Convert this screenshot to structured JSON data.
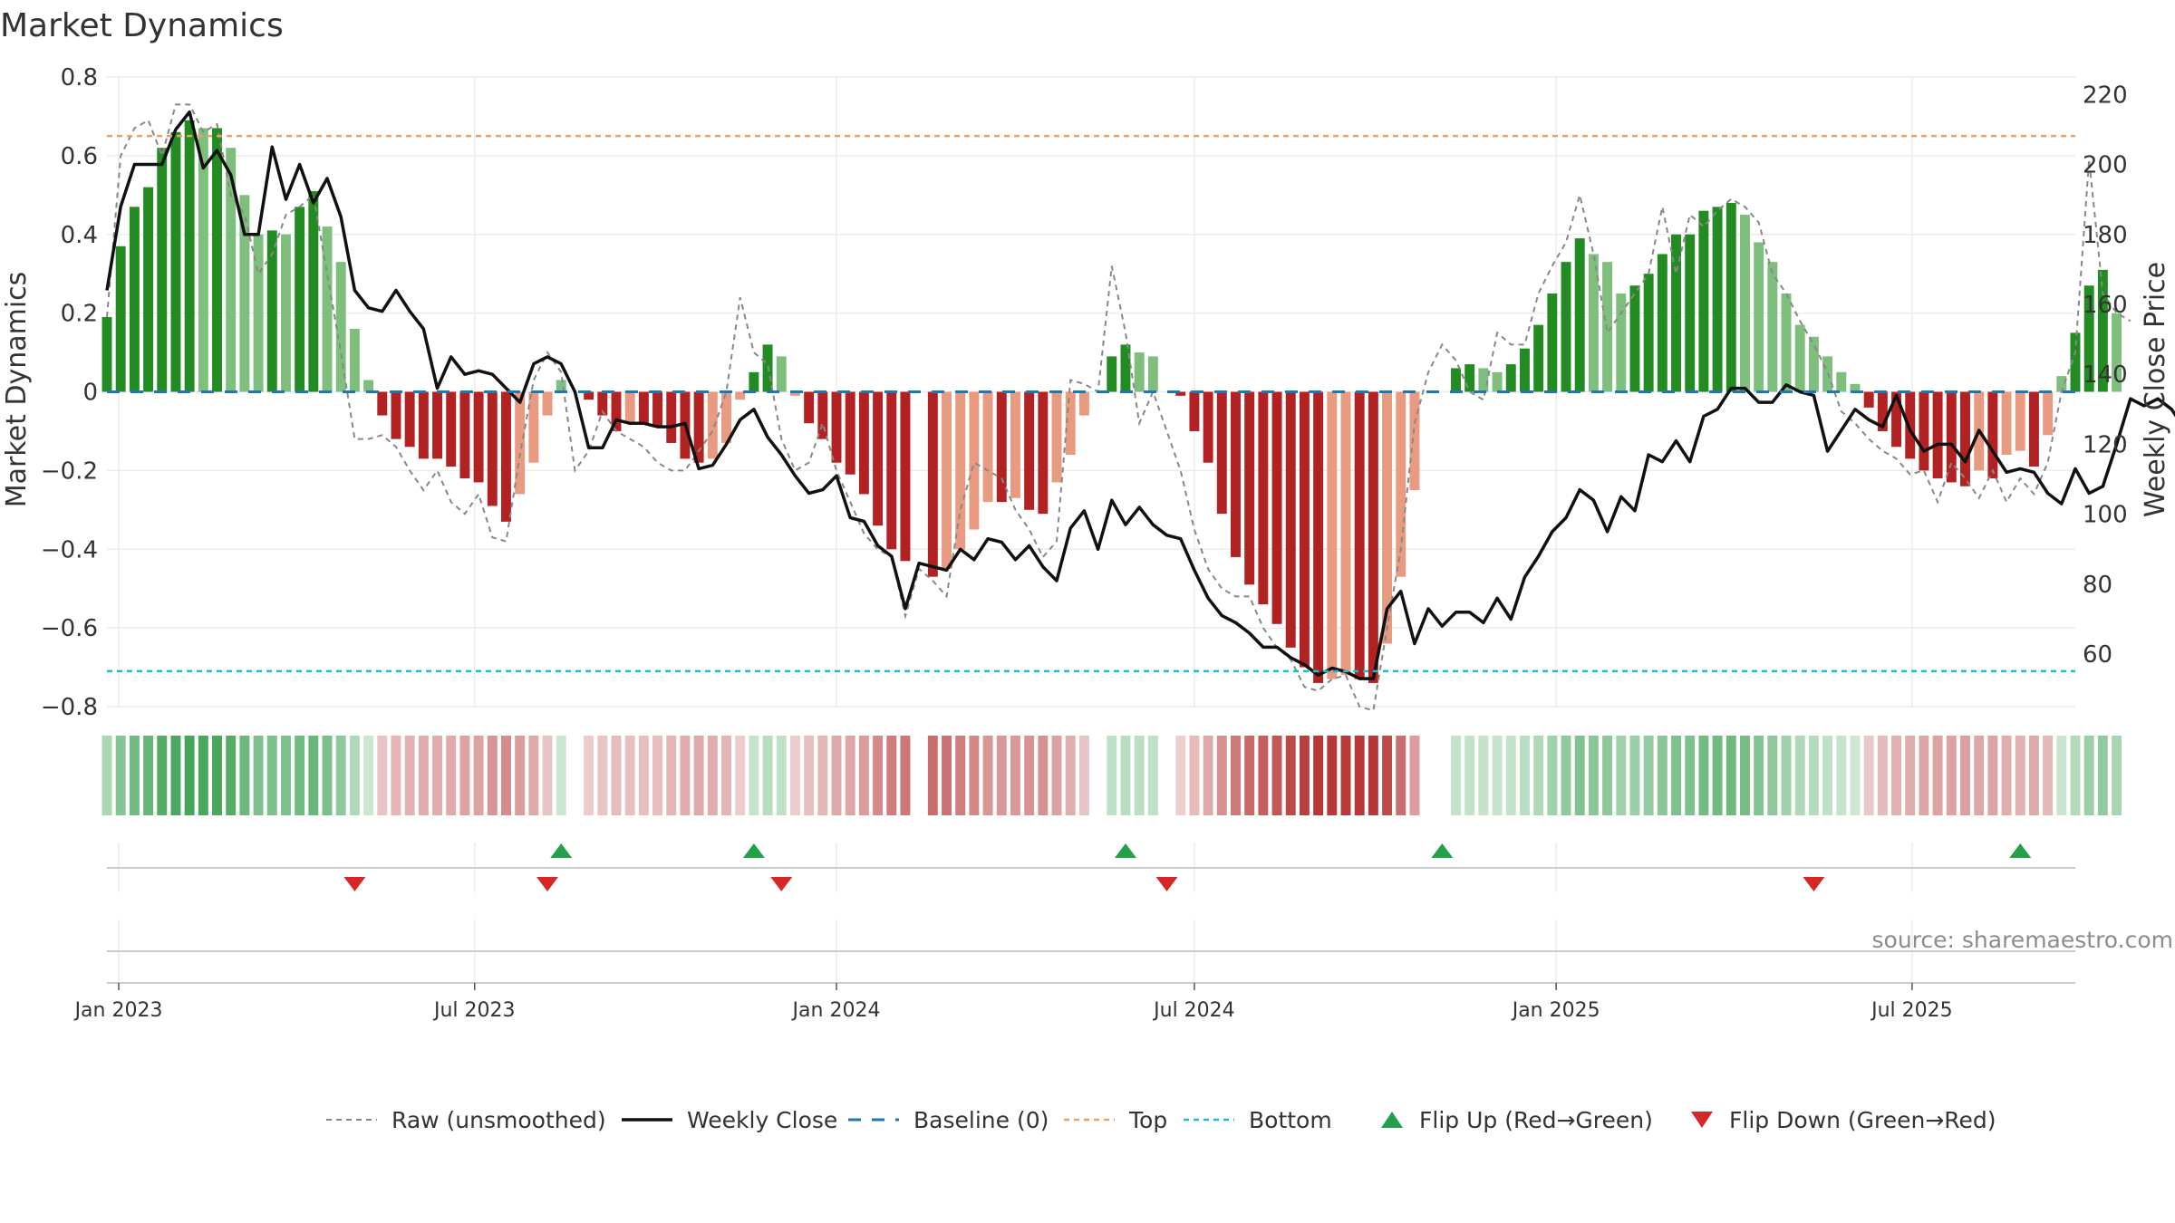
{
  "chart_data": {
    "type": "bar",
    "title": "Market Dynamics",
    "ylabel": "Market Dynamics",
    "y2label": "Weekly Close Price",
    "ylim": [
      -0.8,
      0.8
    ],
    "y2lim": [
      45,
      225
    ],
    "yticks": [
      "0.8",
      "0.6",
      "0.4",
      "0.2",
      "0",
      "−0.2",
      "−0.4",
      "−0.6",
      "−0.8"
    ],
    "y2ticks": [
      "220",
      "200",
      "180",
      "160",
      "140",
      "120",
      "100",
      "80",
      "60"
    ],
    "xrange": [
      "2022-12-26",
      "2025-09-22"
    ],
    "xticks": [
      {
        "date": "2023-01-01",
        "label": "Jan 2023"
      },
      {
        "date": "2023-07-01",
        "label": "Jul 2023"
      },
      {
        "date": "2024-01-01",
        "label": "Jan 2024"
      },
      {
        "date": "2024-07-01",
        "label": "Jul 2024"
      },
      {
        "date": "2025-01-01",
        "label": "Jan 2025"
      },
      {
        "date": "2025-07-01",
        "label": "Jul 2025"
      }
    ],
    "start_week": "2022-12-26",
    "top_level": 0.65,
    "bottom_level": -0.71,
    "grid": true,
    "legend_position": "bottom",
    "source": "source: sharemaestro.com",
    "colors": {
      "green_strong": "#228b22",
      "green_light": "#7ebf7e",
      "red_strong": "#b22222",
      "red_light": "#e89b80",
      "close": "#111111",
      "raw": "#888888",
      "baseline": "#1f77b4",
      "top": "#f0a060",
      "bottom": "#17becf",
      "flip_up": "#22a04a",
      "flip_down": "#d62728"
    },
    "dynamics": [
      0.19,
      0.37,
      0.47,
      0.52,
      0.62,
      0.66,
      0.69,
      0.67,
      0.67,
      0.62,
      0.5,
      0.4,
      0.41,
      0.4,
      0.47,
      0.51,
      0.42,
      0.33,
      0.16,
      0.03,
      -0.06,
      -0.12,
      -0.14,
      -0.17,
      -0.17,
      -0.19,
      -0.22,
      -0.23,
      -0.29,
      -0.33,
      -0.26,
      -0.18,
      -0.06,
      0.03,
      0.0,
      -0.02,
      -0.06,
      -0.1,
      -0.08,
      -0.08,
      -0.09,
      -0.13,
      -0.17,
      -0.18,
      -0.17,
      -0.13,
      -0.02,
      0.05,
      0.12,
      0.09,
      -0.01,
      -0.08,
      -0.12,
      -0.18,
      -0.21,
      -0.26,
      -0.34,
      -0.4,
      -0.43,
      0.0,
      -0.47,
      -0.45,
      -0.4,
      -0.35,
      -0.28,
      -0.28,
      -0.27,
      -0.3,
      -0.31,
      -0.23,
      -0.16,
      -0.06,
      0.0,
      0.09,
      0.12,
      0.1,
      0.09,
      0.0,
      -0.01,
      -0.1,
      -0.18,
      -0.31,
      -0.42,
      -0.49,
      -0.54,
      -0.59,
      -0.65,
      -0.7,
      -0.74,
      -0.73,
      -0.72,
      -0.73,
      -0.74,
      -0.64,
      -0.47,
      -0.25,
      0.0,
      0.0,
      0.06,
      0.07,
      0.06,
      0.05,
      0.07,
      0.11,
      0.17,
      0.25,
      0.33,
      0.39,
      0.35,
      0.33,
      0.25,
      0.27,
      0.3,
      0.35,
      0.4,
      0.4,
      0.46,
      0.47,
      0.48,
      0.45,
      0.38,
      0.33,
      0.25,
      0.17,
      0.14,
      0.09,
      0.05,
      0.02,
      -0.04,
      -0.1,
      -0.14,
      -0.17,
      -0.2,
      -0.22,
      -0.23,
      -0.24,
      -0.2,
      -0.22,
      -0.16,
      -0.15,
      -0.19,
      -0.11,
      0.04,
      0.15,
      0.27,
      0.31,
      0.2
    ],
    "raw": [
      0.19,
      0.6,
      0.67,
      0.69,
      0.6,
      0.73,
      0.73,
      0.66,
      0.68,
      0.5,
      0.45,
      0.3,
      0.35,
      0.45,
      0.47,
      0.5,
      0.3,
      0.1,
      -0.12,
      -0.12,
      -0.11,
      -0.14,
      -0.2,
      -0.25,
      -0.2,
      -0.28,
      -0.31,
      -0.26,
      -0.37,
      -0.38,
      -0.16,
      0.03,
      0.1,
      0.05,
      -0.2,
      -0.15,
      -0.05,
      -0.1,
      -0.12,
      -0.14,
      -0.18,
      -0.2,
      -0.2,
      -0.15,
      -0.1,
      0.0,
      0.24,
      0.1,
      0.07,
      -0.12,
      -0.2,
      -0.18,
      -0.08,
      -0.2,
      -0.28,
      -0.36,
      -0.4,
      -0.42,
      -0.57,
      -0.45,
      -0.48,
      -0.52,
      -0.3,
      -0.18,
      -0.2,
      -0.22,
      -0.3,
      -0.35,
      -0.42,
      -0.38,
      0.03,
      0.02,
      0.0,
      0.32,
      0.15,
      -0.08,
      0.0,
      -0.1,
      -0.2,
      -0.35,
      -0.45,
      -0.5,
      -0.52,
      -0.52,
      -0.6,
      -0.65,
      -0.68,
      -0.75,
      -0.76,
      -0.73,
      -0.72,
      -0.8,
      -0.81,
      -0.6,
      -0.4,
      -0.08,
      0.05,
      0.12,
      0.08,
      0.0,
      -0.02,
      0.15,
      0.12,
      0.12,
      0.25,
      0.32,
      0.38,
      0.5,
      0.35,
      0.15,
      0.2,
      0.25,
      0.3,
      0.47,
      0.3,
      0.45,
      0.42,
      0.46,
      0.49,
      0.47,
      0.43,
      0.3,
      0.25,
      0.18,
      0.12,
      0.05,
      -0.05,
      -0.08,
      -0.12,
      -0.15,
      -0.17,
      -0.21,
      -0.2,
      -0.28,
      -0.18,
      -0.22,
      -0.27,
      -0.2,
      -0.28,
      -0.22,
      -0.26,
      -0.18,
      0.0,
      0.1,
      0.59,
      0.25,
      0.2,
      0.18
    ],
    "close": [
      164,
      188,
      200,
      200,
      200,
      210,
      215,
      199,
      204,
      197,
      180,
      180,
      205,
      190,
      200,
      189,
      196,
      185,
      164,
      159,
      158,
      164,
      158,
      153,
      136,
      145,
      140,
      141,
      140,
      136,
      132,
      143,
      145,
      143,
      135,
      119,
      119,
      127,
      126,
      126,
      125,
      125,
      126,
      113,
      114,
      120,
      127,
      130,
      122,
      117,
      111,
      106,
      107,
      111,
      99,
      98,
      91,
      88,
      73,
      86,
      85,
      84,
      90,
      87,
      93,
      92,
      87,
      91,
      85,
      81,
      96,
      101,
      90,
      104,
      97,
      102,
      97,
      94,
      93,
      84,
      76,
      71,
      69,
      66,
      62,
      62,
      59,
      57,
      54,
      56,
      55,
      53,
      53,
      73,
      78,
      63,
      73,
      68,
      72,
      72,
      69,
      76,
      70,
      82,
      88,
      95,
      99,
      107,
      104,
      95,
      105,
      101,
      117,
      115,
      121,
      115,
      128,
      130,
      136,
      136,
      132,
      132,
      137,
      135,
      134,
      118,
      124,
      130,
      127,
      125,
      134,
      124,
      118,
      120,
      120,
      115,
      124,
      118,
      112,
      113,
      112,
      106,
      103,
      113,
      106,
      108,
      120,
      133,
      131,
      133,
      130,
      124
    ],
    "flip_up": [
      "2023-08-14",
      "2023-11-20",
      "2024-05-27",
      "2024-11-04",
      "2025-08-25"
    ],
    "flip_down": [
      "2023-05-01",
      "2023-08-07",
      "2023-12-04",
      "2024-06-17",
      "2025-05-12"
    ]
  },
  "legend": [
    {
      "key": "raw",
      "label": "Raw (unsmoothed)"
    },
    {
      "key": "close",
      "label": "Weekly Close"
    },
    {
      "key": "baseline",
      "label": "Baseline (0)"
    },
    {
      "key": "top",
      "label": "Top"
    },
    {
      "key": "bottom",
      "label": "Bottom"
    },
    {
      "key": "flip_up",
      "label": "Flip Up (Red→Green)"
    },
    {
      "key": "flip_down",
      "label": "Flip Down (Green→Red)"
    }
  ]
}
